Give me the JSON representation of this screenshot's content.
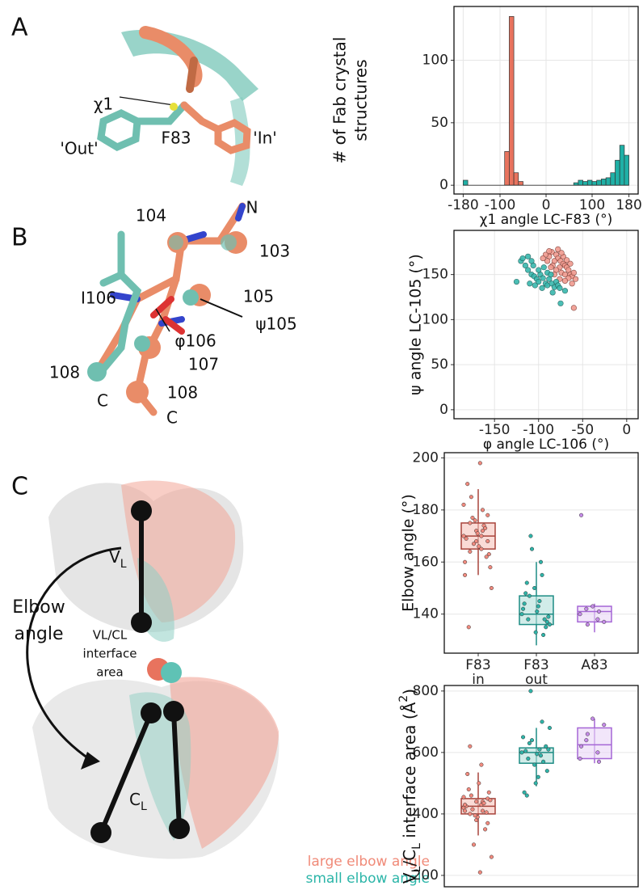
{
  "figure": {
    "panel_a": {
      "letter": "A",
      "labels": [
        "χ1",
        "F83",
        "'Out'",
        "'In'"
      ]
    },
    "panel_b": {
      "letter": "B",
      "labels": [
        "N",
        "104",
        "103",
        "105",
        "ψ105",
        "I106",
        "φ106",
        "107",
        "108",
        "108",
        "C",
        "C"
      ]
    },
    "panel_c": {
      "letter": "C",
      "vl": [
        {
          "text": "V"
        },
        {
          "text": "L",
          "shift": "sub"
        }
      ],
      "cl": [
        {
          "text": "C"
        },
        {
          "text": "L",
          "shift": "sub"
        }
      ],
      "elbow_label": [
        "Elbow",
        "angle"
      ],
      "interface_label": [
        "VL/CL",
        "interface",
        "area"
      ],
      "legend": [
        {
          "text": "large elbow angle",
          "color": "#f08a78"
        },
        {
          "text": "small elbow angle",
          "color": "#2bb5a8"
        }
      ]
    }
  },
  "chart_data": [
    {
      "type": "histogram",
      "xlabel": "χ1 angle LC-F83 (°)",
      "ylabel": [
        "# of Fab crystal",
        "structures"
      ],
      "bins": [
        -180,
        -170,
        -160,
        -150,
        -140,
        -130,
        -120,
        -110,
        -100,
        -90,
        -80,
        -70,
        -60,
        -50,
        -40,
        -30,
        -20,
        -10,
        0,
        10,
        20,
        30,
        40,
        50,
        60,
        70,
        80,
        90,
        100,
        110,
        120,
        130,
        140,
        150,
        160,
        170,
        180
      ],
      "series": [
        {
          "color": "#e8735e",
          "values": [
            0,
            0,
            0,
            0,
            0,
            0,
            0,
            0,
            0,
            27,
            135,
            10,
            3,
            0,
            0,
            0,
            0,
            0,
            0,
            0,
            0,
            0,
            0,
            0,
            0,
            0,
            0,
            0,
            0,
            0,
            0,
            0,
            0,
            0,
            0,
            0
          ]
        },
        {
          "color": "#1fb0a6",
          "values": [
            4,
            0,
            0,
            0,
            0,
            0,
            0,
            0,
            0,
            0,
            0,
            0,
            0,
            0,
            0,
            0,
            0,
            0,
            0,
            0,
            0,
            0,
            0,
            0,
            2,
            4,
            3,
            4,
            3,
            4,
            5,
            6,
            10,
            20,
            32,
            24
          ]
        }
      ],
      "xlim": [
        -200,
        200
      ],
      "ylim": [
        -7,
        143
      ],
      "xticks": [
        -180,
        -100,
        0,
        100,
        180
      ],
      "yticks": [
        0,
        50,
        100
      ],
      "grid": true
    },
    {
      "type": "scatter",
      "xlabel": "φ angle LC-106 (°)",
      "ylabel": "ψ angle LC-105 (°)",
      "series": [
        {
          "color": "#f09a8e",
          "stroke": "#7a3a32",
          "x": [
            -85,
            -80,
            -78,
            -75,
            -72,
            -70,
            -68,
            -66,
            -64,
            -62,
            -82,
            -88,
            -84,
            -76,
            -74,
            -70,
            -66,
            -80,
            -86,
            -90,
            -78,
            -72,
            -68,
            -64,
            -60,
            -58,
            -62,
            -70,
            -92,
            -95,
            -82,
            -76,
            -60,
            -88,
            -74
          ],
          "values": [
            175,
            172,
            168,
            165,
            162,
            160,
            158,
            155,
            150,
            148,
            165,
            170,
            160,
            158,
            152,
            150,
            146,
            155,
            158,
            165,
            178,
            170,
            166,
            162,
            152,
            145,
            140,
            143,
            172,
            168,
            150,
            145,
            113,
            176,
            174
          ]
        },
        {
          "color": "#38b8ad",
          "stroke": "#1f5e59",
          "x": [
            -120,
            -115,
            -112,
            -108,
            -105,
            -102,
            -100,
            -98,
            -95,
            -92,
            -90,
            -88,
            -85,
            -82,
            -80,
            -78,
            -76,
            -110,
            -104,
            -96,
            -100,
            -106,
            -94,
            -90,
            -86,
            -125,
            -118,
            -112,
            -75,
            -84,
            -70,
            -108
          ],
          "values": [
            165,
            160,
            155,
            150,
            148,
            145,
            142,
            150,
            146,
            140,
            138,
            145,
            140,
            136,
            142,
            138,
            135,
            140,
            138,
            135,
            155,
            160,
            158,
            152,
            150,
            142,
            168,
            170,
            118,
            130,
            132,
            165
          ]
        }
      ],
      "xlim": [
        -196,
        13
      ],
      "ylim": [
        -10,
        199
      ],
      "xticks": [
        -150,
        -100,
        -50,
        0
      ],
      "yticks": [
        0,
        50,
        100,
        150
      ],
      "grid": true
    },
    {
      "type": "box",
      "ylabel": "Elbow angle (°)",
      "categories": [
        "F83 in",
        "F83 out",
        "A83"
      ],
      "boxes": [
        {
          "color": "#a8433a",
          "fill": "#f6c3ba",
          "point_color": "#f08a7e",
          "whisker_low": 155,
          "q1": 165,
          "median": 170,
          "q3": 175,
          "whisker_high": 188,
          "points": [
            170,
            165,
            175,
            168,
            172,
            160,
            180,
            185,
            163,
            171,
            169,
            174,
            177,
            158,
            166,
            190,
            173,
            167,
            150,
            198,
            135,
            162,
            176,
            182,
            170,
            164,
            178,
            168,
            155,
            172
          ]
        },
        {
          "color": "#1c8c84",
          "fill": "#b3e0db",
          "point_color": "#2fb3a8",
          "whisker_low": 128,
          "q1": 136,
          "median": 140,
          "q3": 147,
          "whisker_high": 160,
          "points": [
            140,
            145,
            138,
            135,
            150,
            142,
            160,
            147,
            137,
            133,
            144,
            155,
            170,
            139,
            141,
            148,
            132,
            165,
            136,
            143,
            152,
            138
          ]
        },
        {
          "color": "#a566d6",
          "fill": "#ead6f6",
          "point_color": "#c58be8",
          "whisker_low": 133,
          "q1": 137,
          "median": 141,
          "q3": 143,
          "whisker_high": 144,
          "points": [
            140,
            138,
            142,
            137,
            143,
            178,
            141,
            136
          ]
        }
      ],
      "ylim": [
        125,
        202
      ],
      "yticks": [
        140,
        160,
        180,
        200
      ],
      "grid": true
    },
    {
      "type": "box",
      "ylabel": [
        {
          "text": "V"
        },
        {
          "text": "L",
          "shift": "sub"
        },
        {
          "text": "/C"
        },
        {
          "text": "L",
          "shift": "sub"
        },
        {
          "text": " interface area (Å"
        },
        {
          "text": "2",
          "shift": "super"
        },
        {
          "text": ")"
        }
      ],
      "boxes": [
        {
          "color": "#a8433a",
          "fill": "#f6c3ba",
          "point_color": "#f08a7e",
          "whisker_low": 330,
          "q1": 400,
          "median": 425,
          "q3": 450,
          "whisker_high": 535,
          "points": [
            420,
            430,
            400,
            450,
            380,
            410,
            440,
            460,
            470,
            390,
            425,
            435,
            415,
            445,
            500,
            530,
            350,
            300,
            260,
            210,
            480,
            405,
            395,
            455,
            560,
            620,
            370,
            440,
            430,
            410
          ]
        },
        {
          "color": "#1c8c84",
          "fill": "#b3e0db",
          "point_color": "#2fb3a8",
          "whisker_low": 490,
          "q1": 565,
          "median": 600,
          "q3": 615,
          "whisker_high": 680,
          "points": [
            600,
            610,
            580,
            620,
            560,
            650,
            590,
            630,
            540,
            500,
            470,
            700,
            800,
            610,
            595,
            605,
            570,
            640,
            680,
            520,
            460
          ]
        },
        {
          "color": "#a566d6",
          "fill": "#ead6f6",
          "point_color": "#c58be8",
          "whisker_low": 565,
          "q1": 580,
          "median": 625,
          "q3": 680,
          "whisker_high": 710,
          "points": [
            580,
            600,
            640,
            690,
            710,
            620,
            570,
            660
          ]
        }
      ],
      "ylim": [
        163,
        818
      ],
      "yticks": [
        200,
        400,
        600,
        800
      ],
      "grid": true
    }
  ]
}
